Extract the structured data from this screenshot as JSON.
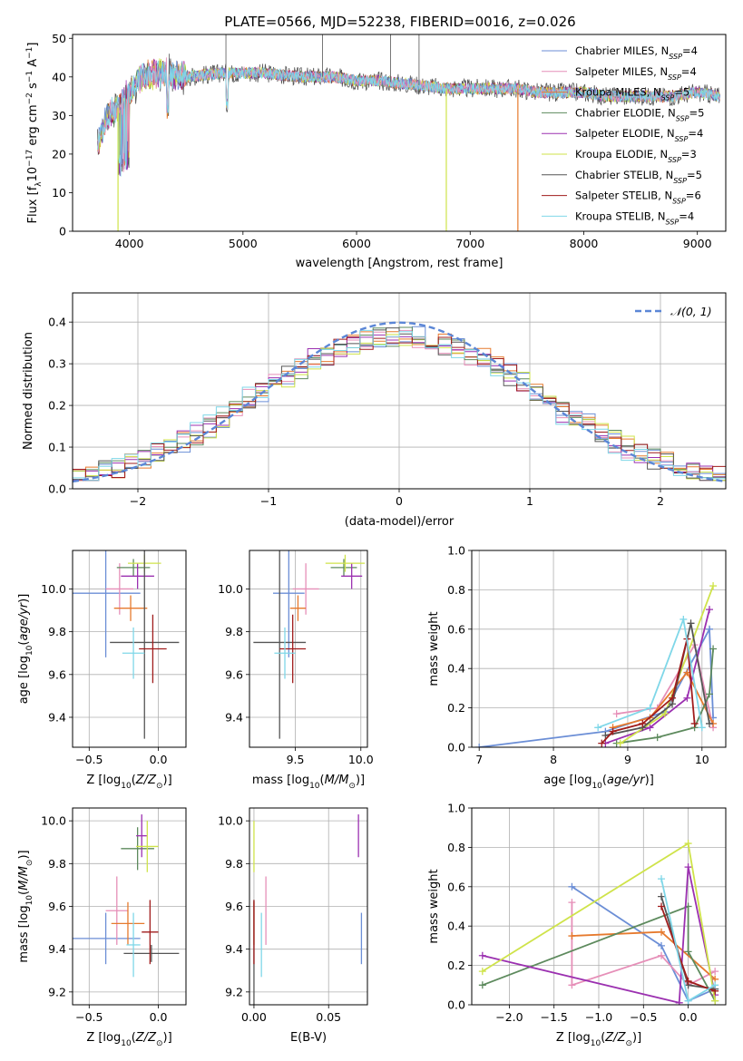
{
  "figure_title": "PLATE=0566, MJD=52238, FIBERID=0016, z=0.026",
  "colors": {
    "Chabrier MILES": "#6b8ed6",
    "Salpeter MILES": "#e68fb8",
    "Kroupa MILES": "#e67a2e",
    "Chabrier ELODIE": "#5d8a5d",
    "Salpeter ELODIE": "#9b30b0",
    "Kroupa ELODIE": "#cfe34a",
    "Chabrier STELIB": "#555555",
    "Salpeter STELIB": "#a01c1c",
    "Kroupa STELIB": "#7fd7e8"
  },
  "chart_data": [
    {
      "id": "spectrum",
      "type": "line",
      "title": "PLATE=0566, MJD=52238, FIBERID=0016, z=0.026",
      "xlabel": "wavelength [Angstrom, rest frame]",
      "ylabel": "Flux [f_λ10^-17 erg cm^-2 s^-1 A^-1]",
      "xlim": [
        3500,
        9250
      ],
      "ylim": [
        0,
        51
      ],
      "xticks": [
        "4000",
        "5000",
        "6000",
        "7000",
        "8000",
        "9000"
      ],
      "yticks": [
        "0",
        "10",
        "20",
        "30",
        "40",
        "50"
      ],
      "grid": false,
      "legend_position": "top-right",
      "legend": [
        {
          "model": "Chabrier MILES",
          "nssp": "4"
        },
        {
          "model": "Salpeter MILES",
          "nssp": "4"
        },
        {
          "model": "Kroupa MILES",
          "nssp": "5"
        },
        {
          "model": "Chabrier ELODIE",
          "nssp": "5"
        },
        {
          "model": "Salpeter ELODIE",
          "nssp": "4"
        },
        {
          "model": "Kroupa ELODIE",
          "nssp": "3"
        },
        {
          "model": "Chabrier STELIB",
          "nssp": "5"
        },
        {
          "model": "Salpeter STELIB",
          "nssp": "6"
        },
        {
          "model": "Kroupa STELIB",
          "nssp": "4"
        }
      ],
      "continuum": [
        [
          3720,
          22
        ],
        [
          3800,
          30
        ],
        [
          3900,
          32
        ],
        [
          4000,
          36
        ],
        [
          4100,
          40
        ],
        [
          4300,
          41
        ],
        [
          4500,
          40
        ],
        [
          4800,
          41
        ],
        [
          5000,
          41
        ],
        [
          5200,
          41
        ],
        [
          5500,
          40
        ],
        [
          5800,
          40
        ],
        [
          6000,
          39
        ],
        [
          6200,
          39
        ],
        [
          6500,
          38
        ],
        [
          6800,
          37
        ],
        [
          7000,
          37
        ],
        [
          7200,
          37
        ],
        [
          7400,
          37
        ],
        [
          7600,
          36
        ],
        [
          7800,
          36
        ],
        [
          8000,
          36
        ],
        [
          8200,
          35
        ],
        [
          8500,
          35
        ],
        [
          8800,
          35
        ],
        [
          9000,
          36
        ],
        [
          9200,
          35
        ]
      ],
      "dropouts": [
        {
          "model": "Kroupa ELODIE",
          "x": 3900
        },
        {
          "model": "Kroupa ELODIE",
          "x": 6790
        },
        {
          "model": "Kroupa MILES",
          "x": 7420
        }
      ],
      "spikes": [
        {
          "x": 4350,
          "y": 46
        },
        {
          "x": 4850,
          "y": 51
        },
        {
          "x": 5700,
          "y": 51
        },
        {
          "x": 6300,
          "y": 51
        },
        {
          "x": 6550,
          "y": 51
        }
      ]
    },
    {
      "id": "residuals",
      "type": "histogram",
      "xlabel": "(data-model)/error",
      "ylabel": "Normed distribution",
      "xlim": [
        -2.5,
        2.5
      ],
      "ylim": [
        0,
        0.47
      ],
      "xticks": [
        "−2",
        "−1",
        "0",
        "1",
        "2"
      ],
      "yticks": [
        "0.0",
        "0.1",
        "0.2",
        "0.3",
        "0.4"
      ],
      "grid": true,
      "legend_position": "top-right",
      "legend": [
        "𝒩(0, 1)"
      ],
      "reference_curve": {
        "mean": 0,
        "sigma": 1
      },
      "bin_width": 0.1,
      "series_jitter": [
        0.05,
        -0.04,
        0.03,
        0.02,
        -0.03,
        0.04,
        -0.02,
        0.01,
        -0.05
      ]
    },
    {
      "id": "age_vs_Z",
      "type": "errorbar",
      "xlabel": "Z [log10(Z/Z⊙)]",
      "ylabel": "age [log10(age/yr)]",
      "xlim": [
        -0.62,
        0.2
      ],
      "ylim": [
        9.26,
        10.18
      ],
      "xticks": [
        "−0.5",
        "0.0"
      ],
      "yticks": [
        "9.4",
        "9.6",
        "9.8",
        "10.0"
      ],
      "grid": true,
      "points": [
        {
          "model": "Chabrier MILES",
          "x": -0.38,
          "y": 9.98,
          "xerr": 0.25,
          "yerr": 0.3
        },
        {
          "model": "Salpeter MILES",
          "x": -0.28,
          "y": 10.0,
          "xerr": 0.1,
          "yerr": 0.12
        },
        {
          "model": "Kroupa MILES",
          "x": -0.2,
          "y": 9.91,
          "xerr": 0.12,
          "yerr": 0.06
        },
        {
          "model": "Chabrier ELODIE",
          "x": -0.18,
          "y": 10.1,
          "xerr": 0.12,
          "yerr": 0.04
        },
        {
          "model": "Salpeter ELODIE",
          "x": -0.15,
          "y": 10.06,
          "xerr": 0.12,
          "yerr": 0.06
        },
        {
          "model": "Kroupa ELODIE",
          "x": -0.1,
          "y": 10.12,
          "xerr": 0.12,
          "yerr": 0.04
        },
        {
          "model": "Chabrier STELIB",
          "x": -0.1,
          "y": 9.75,
          "xerr": 0.25,
          "yerr": 0.45
        },
        {
          "model": "Salpeter STELIB",
          "x": -0.04,
          "y": 9.72,
          "xerr": 0.1,
          "yerr": 0.16
        },
        {
          "model": "Kroupa STELIB",
          "x": -0.18,
          "y": 9.7,
          "xerr": 0.08,
          "yerr": 0.12
        }
      ]
    },
    {
      "id": "age_vs_mass",
      "type": "errorbar",
      "xlabel": "mass [log10(M/M⊙)]",
      "ylabel": "",
      "xlim": [
        9.15,
        10.05
      ],
      "ylim": [
        9.26,
        10.18
      ],
      "xticks": [
        "9.5",
        "10.0"
      ],
      "yticks": [
        "9.4",
        "9.6",
        "9.8",
        "10.0"
      ],
      "grid": true,
      "points": [
        {
          "model": "Chabrier MILES",
          "x": 9.45,
          "y": 9.98,
          "xerr": 0.12,
          "yerr": 0.3
        },
        {
          "model": "Salpeter MILES",
          "x": 9.58,
          "y": 10.0,
          "xerr": 0.1,
          "yerr": 0.12
        },
        {
          "model": "Kroupa MILES",
          "x": 9.52,
          "y": 9.91,
          "xerr": 0.06,
          "yerr": 0.06
        },
        {
          "model": "Chabrier ELODIE",
          "x": 9.87,
          "y": 10.1,
          "xerr": 0.1,
          "yerr": 0.04
        },
        {
          "model": "Salpeter ELODIE",
          "x": 9.93,
          "y": 10.06,
          "xerr": 0.08,
          "yerr": 0.06
        },
        {
          "model": "Kroupa ELODIE",
          "x": 9.88,
          "y": 10.12,
          "xerr": 0.15,
          "yerr": 0.04
        },
        {
          "model": "Chabrier STELIB",
          "x": 9.38,
          "y": 9.75,
          "xerr": 0.2,
          "yerr": 0.45
        },
        {
          "model": "Salpeter STELIB",
          "x": 9.48,
          "y": 9.72,
          "xerr": 0.1,
          "yerr": 0.16
        },
        {
          "model": "Kroupa STELIB",
          "x": 9.42,
          "y": 9.7,
          "xerr": 0.08,
          "yerr": 0.12
        }
      ]
    },
    {
      "id": "massweight_vs_age",
      "type": "line",
      "xlabel": "age [log10(age/yr)]",
      "ylabel": "mass weight",
      "xlim": [
        6.9,
        10.32
      ],
      "ylim": [
        0,
        1.0
      ],
      "xticks": [
        "7",
        "8",
        "9",
        "10"
      ],
      "yticks": [
        "0.0",
        "0.2",
        "0.4",
        "0.6",
        "0.8",
        "1.0"
      ],
      "grid": true,
      "series": [
        {
          "model": "Chabrier MILES",
          "points": [
            [
              7.0,
              0.0
            ],
            [
              8.7,
              0.08
            ],
            [
              9.5,
              0.18
            ],
            [
              10.1,
              0.6
            ],
            [
              10.15,
              0.15
            ]
          ]
        },
        {
          "model": "Salpeter MILES",
          "points": [
            [
              8.85,
              0.17
            ],
            [
              9.4,
              0.2
            ],
            [
              9.9,
              0.52
            ],
            [
              10.15,
              0.1
            ]
          ]
        },
        {
          "model": "Kroupa MILES",
          "points": [
            [
              8.8,
              0.1
            ],
            [
              9.3,
              0.15
            ],
            [
              9.8,
              0.38
            ],
            [
              10.15,
              0.12
            ]
          ]
        },
        {
          "model": "Chabrier ELODIE",
          "points": [
            [
              8.85,
              0.02
            ],
            [
              9.4,
              0.05
            ],
            [
              9.9,
              0.1
            ],
            [
              10.1,
              0.27
            ],
            [
              10.15,
              0.5
            ]
          ]
        },
        {
          "model": "Salpeter ELODIE",
          "points": [
            [
              8.7,
              0.02
            ],
            [
              9.3,
              0.1
            ],
            [
              9.8,
              0.25
            ],
            [
              10.1,
              0.7
            ]
          ]
        },
        {
          "model": "Kroupa ELODIE",
          "points": [
            [
              8.9,
              0.02
            ],
            [
              9.5,
              0.17
            ],
            [
              10.15,
              0.82
            ]
          ]
        },
        {
          "model": "Chabrier STELIB",
          "points": [
            [
              8.7,
              0.06
            ],
            [
              9.2,
              0.1
            ],
            [
              9.6,
              0.22
            ],
            [
              9.85,
              0.63
            ],
            [
              10.1,
              0.12
            ]
          ]
        },
        {
          "model": "Salpeter STELIB",
          "points": [
            [
              8.65,
              0.02
            ],
            [
              8.8,
              0.08
            ],
            [
              9.2,
              0.12
            ],
            [
              9.6,
              0.25
            ],
            [
              9.8,
              0.55
            ],
            [
              9.9,
              0.12
            ]
          ]
        },
        {
          "model": "Kroupa STELIB",
          "points": [
            [
              8.6,
              0.1
            ],
            [
              9.3,
              0.2
            ],
            [
              9.75,
              0.65
            ],
            [
              10.0,
              0.1
            ]
          ]
        }
      ]
    },
    {
      "id": "mass_vs_Z",
      "type": "errorbar",
      "xlabel": "Z [log10(Z/Z⊙)]",
      "ylabel": "mass [log10(M/M⊙)]",
      "xlim": [
        -0.62,
        0.2
      ],
      "ylim": [
        9.14,
        10.06
      ],
      "xticks": [
        "−0.5",
        "0.0"
      ],
      "yticks": [
        "9.2",
        "9.4",
        "9.6",
        "9.8",
        "10.0"
      ],
      "grid": true,
      "points": [
        {
          "model": "Chabrier MILES",
          "x": -0.38,
          "y": 9.45,
          "xerr": 0.25,
          "yerr": 0.12
        },
        {
          "model": "Salpeter MILES",
          "x": -0.3,
          "y": 9.58,
          "xerr": 0.08,
          "yerr": 0.16
        },
        {
          "model": "Kroupa MILES",
          "x": -0.22,
          "y": 9.52,
          "xerr": 0.12,
          "yerr": 0.1
        },
        {
          "model": "Chabrier ELODIE",
          "x": -0.15,
          "y": 9.87,
          "xerr": 0.12,
          "yerr": 0.1
        },
        {
          "model": "Salpeter ELODIE",
          "x": -0.12,
          "y": 9.93,
          "xerr": 0.04,
          "yerr": 0.1
        },
        {
          "model": "Kroupa ELODIE",
          "x": -0.08,
          "y": 9.88,
          "xerr": 0.08,
          "yerr": 0.12
        },
        {
          "model": "Chabrier STELIB",
          "x": -0.05,
          "y": 9.38,
          "xerr": 0.2,
          "yerr": 0.04
        },
        {
          "model": "Salpeter STELIB",
          "x": -0.06,
          "y": 9.48,
          "xerr": 0.06,
          "yerr": 0.15
        },
        {
          "model": "Kroupa STELIB",
          "x": -0.18,
          "y": 9.42,
          "xerr": 0.05,
          "yerr": 0.15
        }
      ]
    },
    {
      "id": "mass_vs_ebv",
      "type": "errorbar",
      "xlabel": "E(B-V)",
      "ylabel": "",
      "xlim": [
        -0.003,
        0.076
      ],
      "ylim": [
        9.14,
        10.06
      ],
      "xticks": [
        "0.00",
        "0.05"
      ],
      "yticks": [
        "9.2",
        "9.4",
        "9.6",
        "9.8",
        "10.0"
      ],
      "grid": true,
      "points": [
        {
          "model": "Chabrier MILES",
          "x": 0.072,
          "y": 9.45,
          "xerr": 0,
          "yerr": 0.12
        },
        {
          "model": "Salpeter MILES",
          "x": 0.008,
          "y": 9.58,
          "xerr": 0,
          "yerr": 0.16
        },
        {
          "model": "Kroupa MILES",
          "x": 0.0,
          "y": 9.52,
          "xerr": 0,
          "yerr": 0.1
        },
        {
          "model": "Salpeter ELODIE",
          "x": 0.07,
          "y": 9.93,
          "xerr": 0,
          "yerr": 0.1
        },
        {
          "model": "Kroupa ELODIE",
          "x": 0.0,
          "y": 9.88,
          "xerr": 0,
          "yerr": 0.12
        },
        {
          "model": "Chabrier STELIB",
          "x": 0.0,
          "y": 9.38,
          "xerr": 0,
          "yerr": 0.25
        },
        {
          "model": "Salpeter STELIB",
          "x": 0.0,
          "y": 9.48,
          "xerr": 0,
          "yerr": 0.15
        },
        {
          "model": "Kroupa STELIB",
          "x": 0.005,
          "y": 9.42,
          "xerr": 0,
          "yerr": 0.15
        }
      ]
    },
    {
      "id": "massweight_vs_Z",
      "type": "line",
      "xlabel": "Z [log10(Z/Z⊙)]",
      "ylabel": "mass weight",
      "xlim": [
        -2.42,
        0.42
      ],
      "ylim": [
        0,
        1.0
      ],
      "xticks": [
        "−2.0",
        "−1.5",
        "−1.0",
        "−0.5",
        "0.0"
      ],
      "yticks": [
        "0.0",
        "0.2",
        "0.4",
        "0.6",
        "0.8",
        "1.0"
      ],
      "grid": true,
      "series": [
        {
          "model": "Chabrier MILES",
          "points": [
            [
              -1.3,
              0.6
            ],
            [
              -0.3,
              0.3
            ],
            [
              0.0,
              0.02
            ],
            [
              0.3,
              0.08
            ]
          ]
        },
        {
          "model": "Salpeter MILES",
          "points": [
            [
              -1.3,
              0.52
            ],
            [
              -1.3,
              0.1
            ],
            [
              -0.3,
              0.25
            ],
            [
              0.0,
              0.1
            ],
            [
              0.3,
              0.17
            ]
          ]
        },
        {
          "model": "Kroupa MILES",
          "points": [
            [
              -1.3,
              0.35
            ],
            [
              -0.3,
              0.37
            ],
            [
              0.3,
              0.13
            ]
          ]
        },
        {
          "model": "Chabrier ELODIE",
          "points": [
            [
              -2.3,
              0.1
            ],
            [
              0.0,
              0.5
            ],
            [
              0.0,
              0.27
            ],
            [
              0.3,
              0.02
            ]
          ]
        },
        {
          "model": "Salpeter ELODIE",
          "points": [
            [
              -2.3,
              0.25
            ],
            [
              -0.1,
              0.01
            ],
            [
              0.0,
              0.7
            ],
            [
              0.3,
              0.05
            ]
          ]
        },
        {
          "model": "Kroupa ELODIE",
          "points": [
            [
              -2.3,
              0.17
            ],
            [
              0.0,
              0.82
            ],
            [
              0.3,
              0.02
            ]
          ]
        },
        {
          "model": "Chabrier STELIB",
          "points": [
            [
              -0.3,
              0.55
            ],
            [
              0.0,
              0.1
            ],
            [
              0.3,
              0.08
            ]
          ]
        },
        {
          "model": "Salpeter STELIB",
          "points": [
            [
              -0.3,
              0.5
            ],
            [
              0.0,
              0.12
            ],
            [
              0.3,
              0.07
            ]
          ]
        },
        {
          "model": "Kroupa STELIB",
          "points": [
            [
              -0.3,
              0.64
            ],
            [
              0.0,
              0.02
            ],
            [
              0.3,
              0.1
            ]
          ]
        }
      ]
    }
  ]
}
